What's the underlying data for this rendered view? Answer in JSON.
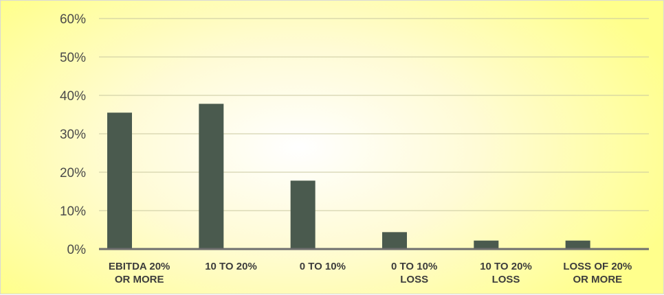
{
  "chart_data": {
    "type": "bar",
    "categories": [
      [
        "EBITDA 20%",
        "OR MORE"
      ],
      [
        "10 TO 20%"
      ],
      [
        "0 TO 10%"
      ],
      [
        "0 TO 10%",
        "LOSS"
      ],
      [
        "10 TO 20%",
        "LOSS"
      ],
      [
        "LOSS OF 20%",
        "OR MORE"
      ]
    ],
    "values": [
      35.5,
      37.8,
      17.8,
      4.4,
      2.2,
      2.2
    ],
    "ylim": [
      0,
      60
    ],
    "yticks": [
      0,
      10,
      20,
      30,
      40,
      50,
      60
    ],
    "ytick_labels": [
      "0%",
      "10%",
      "20%",
      "30%",
      "40%",
      "50%",
      "60%"
    ],
    "grid": true,
    "bar_color": "#4a5a4e",
    "axis_color": "#6e6e6e",
    "grid_color": "#c8c8a0",
    "title": "",
    "xlabel": "",
    "ylabel": ""
  }
}
